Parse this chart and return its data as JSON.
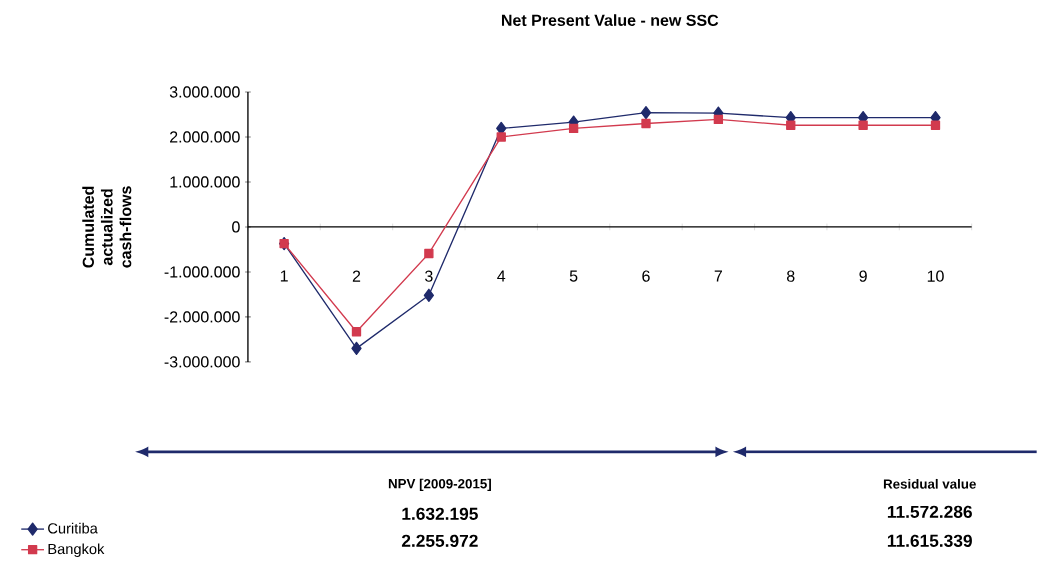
{
  "chart_data": {
    "type": "line",
    "title": "Net Present Value - new SSC",
    "ylabel": "Cumulated actualized cash-flows",
    "categories": [
      "1",
      "2",
      "3",
      "4",
      "5",
      "6",
      "7",
      "8",
      "9",
      "10"
    ],
    "series": [
      {
        "name": "Curitiba",
        "color": "#1f2a6b",
        "marker": "diamond",
        "values": [
          -370000,
          -2700000,
          -1520000,
          2190000,
          2330000,
          2540000,
          2530000,
          2430000,
          2430000,
          2430000
        ]
      },
      {
        "name": "Bangkok",
        "color": "#d23a4e",
        "marker": "square",
        "values": [
          -370000,
          -2330000,
          -590000,
          2000000,
          2190000,
          2300000,
          2390000,
          2260000,
          2260000,
          2260000
        ]
      }
    ],
    "ylim": [
      -3000000,
      3000000
    ],
    "yticks": [
      {
        "value": -3000000,
        "label": "-3.000.000"
      },
      {
        "value": -2000000,
        "label": "-2.000.000"
      },
      {
        "value": -1000000,
        "label": "-1.000.000"
      },
      {
        "value": 0,
        "label": "0"
      },
      {
        "value": 1000000,
        "label": "1.000.000"
      },
      {
        "value": 2000000,
        "label": "2.000.000"
      },
      {
        "value": 3000000,
        "label": "3.000.000"
      }
    ],
    "legend": "bottom left",
    "annotations": [
      "NPV [2009-2015]",
      "1.632.195",
      "2.255.972",
      "Residual value",
      "11.572.286",
      "11.615.339"
    ]
  }
}
